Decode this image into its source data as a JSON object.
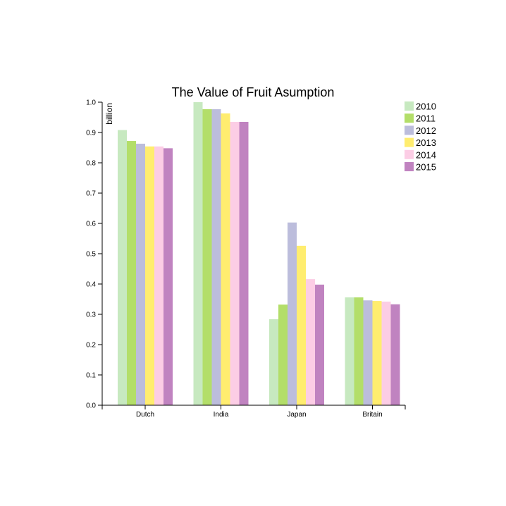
{
  "chart_data": {
    "type": "bar",
    "title": "The Value of Fruit Asumption",
    "xlabel": "",
    "ylabel": "billion",
    "ylim": [
      0,
      1.0
    ],
    "yticks": [
      "0.0",
      "0.1",
      "0.2",
      "0.3",
      "0.4",
      "0.5",
      "0.6",
      "0.7",
      "0.8",
      "0.9",
      "1.0"
    ],
    "categories": [
      "Dutch",
      "India",
      "Japan",
      "Britain"
    ],
    "legend_position": "top-right",
    "grid": false,
    "series": [
      {
        "name": "2010",
        "color": "#c7e9c0",
        "values": [
          0.908,
          1.0,
          0.284,
          0.356
        ]
      },
      {
        "name": "2011",
        "color": "#b3de69",
        "values": [
          0.872,
          0.977,
          0.332,
          0.356
        ]
      },
      {
        "name": "2012",
        "color": "#bcbddc",
        "values": [
          0.863,
          0.977,
          0.603,
          0.346
        ]
      },
      {
        "name": "2013",
        "color": "#ffed6f",
        "values": [
          0.854,
          0.963,
          0.526,
          0.344
        ]
      },
      {
        "name": "2014",
        "color": "#fccde5",
        "values": [
          0.854,
          0.935,
          0.416,
          0.342
        ]
      },
      {
        "name": "2015",
        "color": "#c083c0",
        "values": [
          0.848,
          0.935,
          0.398,
          0.333
        ]
      }
    ]
  }
}
